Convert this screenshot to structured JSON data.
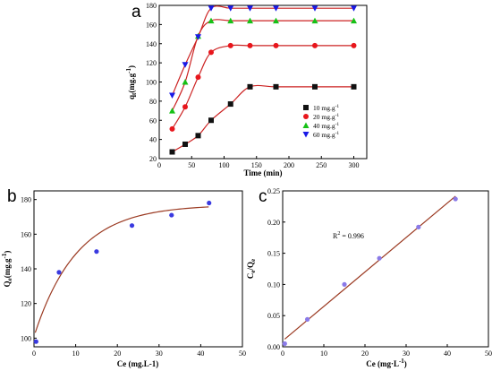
{
  "chart_data": [
    {
      "panel": "a",
      "type": "scatter",
      "xlabel": "Time (min)",
      "ylabel": "qt(mg.g-1)",
      "xlim": [
        0,
        320
      ],
      "ylim": [
        20,
        180
      ],
      "xticks": [
        0,
        50,
        100,
        150,
        200,
        250,
        300
      ],
      "yticks": [
        20,
        40,
        60,
        80,
        100,
        120,
        140,
        160,
        180
      ],
      "legend_position": "lower-right",
      "fit_line_color": "#cc2222",
      "series": [
        {
          "name": "10 mg.g-1",
          "marker": "square",
          "color": "#111111",
          "x": [
            20,
            40,
            60,
            80,
            110,
            140,
            180,
            240,
            300
          ],
          "y": [
            27,
            35,
            44,
            60,
            77,
            95,
            95,
            95,
            95
          ]
        },
        {
          "name": "20 mg.g-1",
          "marker": "circle",
          "color": "#e8161c",
          "x": [
            20,
            40,
            60,
            80,
            110,
            140,
            180,
            240,
            300
          ],
          "y": [
            51,
            74,
            105,
            131,
            138,
            138,
            138,
            138,
            138
          ]
        },
        {
          "name": "40 mg.g-1",
          "marker": "triangle-up",
          "color": "#16c116",
          "x": [
            20,
            40,
            60,
            80,
            110,
            140,
            180,
            240,
            300
          ],
          "y": [
            70,
            100,
            148,
            164,
            164,
            164,
            164,
            164,
            164
          ]
        },
        {
          "name": "60 mg.g-1",
          "marker": "triangle-down",
          "color": "#1a1ae6",
          "x": [
            20,
            40,
            60,
            80,
            110,
            140,
            180,
            240,
            300
          ],
          "y": [
            86,
            118,
            147,
            177,
            177,
            177,
            177,
            177,
            177
          ]
        }
      ]
    },
    {
      "panel": "b",
      "type": "scatter",
      "xlabel": "Ce (mg.L-1)",
      "ylabel": "Qe (mg.g-1)",
      "xlim": [
        0,
        50
      ],
      "ylim": [
        95,
        185
      ],
      "xticks": [
        0,
        10,
        20,
        30,
        40,
        50
      ],
      "yticks": [
        100,
        120,
        140,
        160,
        180
      ],
      "marker_color": "#3a3ae0",
      "fit_line_color": "#9b3a22",
      "series": [
        {
          "x": [
            0.5,
            6,
            15,
            23.5,
            33,
            42
          ],
          "y": [
            98,
            138,
            150,
            165,
            171,
            178
          ]
        }
      ]
    },
    {
      "panel": "c",
      "type": "scatter",
      "xlabel": "Ce (mg.L-1)",
      "ylabel": "Ce/Qe",
      "xlim": [
        0,
        50
      ],
      "ylim": [
        0.0,
        0.25
      ],
      "xticks": [
        0,
        10,
        20,
        30,
        40,
        50
      ],
      "yticks": [
        0.0,
        0.05,
        0.1,
        0.15,
        0.2,
        0.25
      ],
      "annotation": "R2 = 0.996",
      "marker_color": "#8a7ae8",
      "fit_line_color": "#9b3a22",
      "series": [
        {
          "x": [
            0.5,
            6,
            15,
            23.5,
            33,
            42
          ],
          "y": [
            0.005,
            0.044,
            0.1,
            0.142,
            0.192,
            0.237
          ]
        }
      ]
    }
  ],
  "labels": {
    "panel_a": "a",
    "panel_b": "b",
    "panel_c": "c",
    "a_xlabel": "Time (min)",
    "a_ylabel_main": "q",
    "a_ylabel_sub": "t",
    "a_ylabel_unit": "(mg.g",
    "a_ylabel_exp": "-1",
    "a_ylabel_close": ")",
    "b_xlabel": "Ce (mg.L-1)",
    "b_ylabel_main": "Q",
    "b_ylabel_sub": "e",
    "b_ylabel_unit": "(mg.g",
    "b_ylabel_exp": "-1",
    "b_ylabel_close": ")",
    "c_xlabel_main": "Ce (mg·L",
    "c_xlabel_exp": "-1",
    "c_xlabel_close": ")",
    "c_ylabel_1": "C",
    "c_ylabel_1sub": "e",
    "c_ylabel_2": "/Q",
    "c_ylabel_2sub": "e",
    "c_ann_main": "R",
    "c_ann_exp": "2",
    "c_ann_rest": " = 0.996",
    "legend": [
      {
        "main": "10 mg.g",
        "exp": "-1"
      },
      {
        "main": "20 mg.g",
        "exp": "-1"
      },
      {
        "main": "40 mg.g",
        "exp": "-1"
      },
      {
        "main": "60 mg.g",
        "exp": "-1"
      }
    ]
  }
}
